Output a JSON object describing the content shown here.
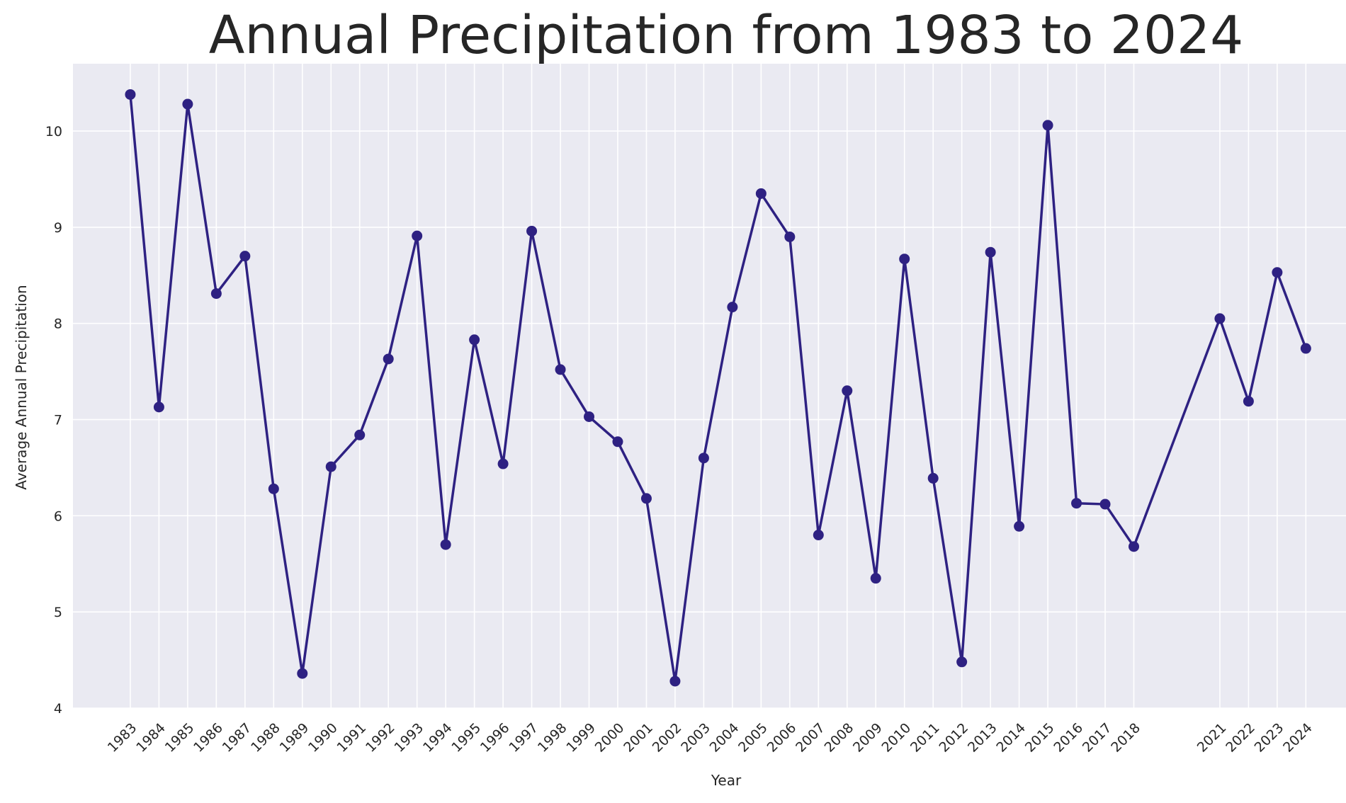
{
  "chart_data": {
    "type": "line",
    "title": "Annual Precipitation from 1983 to 2024",
    "xlabel": "Year",
    "ylabel": "Average Annual Precipitation",
    "x": [
      1983,
      1984,
      1985,
      1986,
      1987,
      1988,
      1989,
      1990,
      1991,
      1992,
      1993,
      1994,
      1995,
      1996,
      1997,
      1998,
      1999,
      2000,
      2001,
      2002,
      2003,
      2004,
      2005,
      2006,
      2007,
      2008,
      2009,
      2010,
      2011,
      2012,
      2013,
      2014,
      2015,
      2016,
      2017,
      2018,
      2021,
      2022,
      2023,
      2024
    ],
    "series": [
      {
        "values": [
          10.38,
          7.13,
          10.28,
          8.31,
          8.7,
          6.28,
          4.36,
          6.51,
          6.84,
          7.63,
          8.91,
          5.7,
          7.83,
          6.54,
          8.96,
          7.52,
          7.03,
          6.77,
          6.18,
          4.28,
          6.6,
          8.17,
          9.35,
          8.9,
          5.8,
          7.3,
          5.35,
          8.67,
          6.39,
          4.48,
          8.74,
          5.89,
          10.06,
          6.13,
          6.12,
          5.68,
          8.05,
          7.19,
          8.53,
          7.74
        ]
      }
    ],
    "yticks": [
      4,
      5,
      6,
      7,
      8,
      9,
      10
    ],
    "ylim": [
      4.0,
      10.7
    ],
    "xlim": [
      1981,
      2025.4
    ],
    "grid": true,
    "line_color": "#2e2182",
    "background": "#eaeaf2"
  }
}
